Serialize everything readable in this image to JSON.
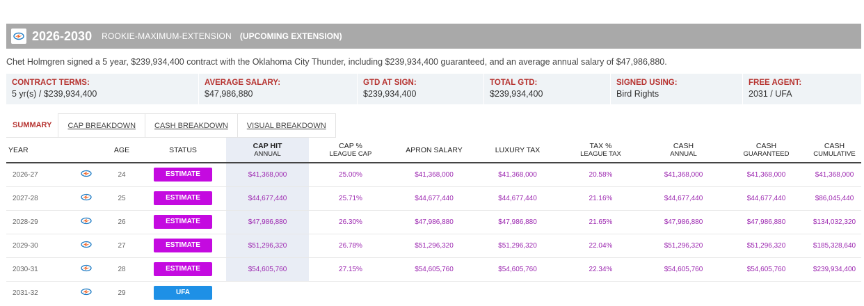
{
  "header": {
    "years": "2026-2030",
    "contract_type": "ROOKIE-MAXIMUM-EXTENSION",
    "note": "(UPCOMING EXTENSION)"
  },
  "summary": "Chet Holmgren signed a 5 year, $239,934,400 contract with the Oklahoma City Thunder, including $239,934,400 guaranteed, and an average annual salary of $47,986,880.",
  "terms": [
    {
      "label": "CONTRACT TERMS:",
      "value": "5 yr(s) / $239,934,400"
    },
    {
      "label": "AVERAGE SALARY:",
      "value": "$47,986,880"
    },
    {
      "label": "GTD AT SIGN:",
      "value": "$239,934,400"
    },
    {
      "label": "TOTAL GTD:",
      "value": "$239,934,400"
    },
    {
      "label": "SIGNED USING:",
      "value": "Bird Rights"
    },
    {
      "label": "FREE AGENT:",
      "value": "2031 / UFA"
    }
  ],
  "tabs": [
    {
      "label": "SUMMARY",
      "active": true
    },
    {
      "label": "CAP BREAKDOWN"
    },
    {
      "label": "CASH BREAKDOWN"
    },
    {
      "label": "VISUAL BREAKDOWN"
    }
  ],
  "columns": {
    "year": "YEAR",
    "age": "AGE",
    "status": "STATUS",
    "cap_hit": {
      "main": "CAP HIT",
      "sub": "ANNUAL"
    },
    "cap_pct": {
      "main": "CAP %",
      "sub": "LEAGUE CAP"
    },
    "apron": "APRON SALARY",
    "lux_tax": "LUXURY TAX",
    "tax_pct": {
      "main": "TAX %",
      "sub": "LEAGUE TAX"
    },
    "cash_annual": {
      "main": "CASH",
      "sub": "ANNUAL"
    },
    "cash_gtd": {
      "main": "CASH",
      "sub": "GUARANTEED"
    },
    "cash_cum": {
      "main": "CASH",
      "sub": "CUMULATIVE"
    }
  },
  "rows": [
    {
      "year": "2026-27",
      "age": "24",
      "status": "ESTIMATE",
      "cap_hit": "$41,368,000",
      "cap_pct": "25.00%",
      "apron": "$41,368,000",
      "lux_tax": "$41,368,000",
      "tax_pct": "20.58%",
      "cash_annual": "$41,368,000",
      "cash_gtd": "$41,368,000",
      "cash_cum": "$41,368,000"
    },
    {
      "year": "2027-28",
      "age": "25",
      "status": "ESTIMATE",
      "cap_hit": "$44,677,440",
      "cap_pct": "25.71%",
      "apron": "$44,677,440",
      "lux_tax": "$44,677,440",
      "tax_pct": "21.16%",
      "cash_annual": "$44,677,440",
      "cash_gtd": "$44,677,440",
      "cash_cum": "$86,045,440"
    },
    {
      "year": "2028-29",
      "age": "26",
      "status": "ESTIMATE",
      "cap_hit": "$47,986,880",
      "cap_pct": "26.30%",
      "apron": "$47,986,880",
      "lux_tax": "$47,986,880",
      "tax_pct": "21.65%",
      "cash_annual": "$47,986,880",
      "cash_gtd": "$47,986,880",
      "cash_cum": "$134,032,320"
    },
    {
      "year": "2029-30",
      "age": "27",
      "status": "ESTIMATE",
      "cap_hit": "$51,296,320",
      "cap_pct": "26.78%",
      "apron": "$51,296,320",
      "lux_tax": "$51,296,320",
      "tax_pct": "22.04%",
      "cash_annual": "$51,296,320",
      "cash_gtd": "$51,296,320",
      "cash_cum": "$185,328,640"
    },
    {
      "year": "2030-31",
      "age": "28",
      "status": "ESTIMATE",
      "cap_hit": "$54,605,760",
      "cap_pct": "27.15%",
      "apron": "$54,605,760",
      "lux_tax": "$54,605,760",
      "tax_pct": "22.34%",
      "cash_annual": "$54,605,760",
      "cash_gtd": "$54,605,760",
      "cash_cum": "$239,934,400"
    },
    {
      "year": "2031-32",
      "age": "29",
      "status": "UFA",
      "cap_hit": "",
      "cap_pct": "",
      "apron": "",
      "lux_tax": "",
      "tax_pct": "",
      "cash_annual": "",
      "cash_gtd": "",
      "cash_cum": ""
    }
  ],
  "colors": {
    "header_bg": "#a9a9a9",
    "label_red": "#b6322f",
    "money_purple": "#9c27b0",
    "estimate_badge": "#c40ae0",
    "ufa_badge": "#1e90e6",
    "highlight_col": "#e9edf5"
  },
  "icons": {
    "team_logo": "thunder-logo-icon"
  }
}
